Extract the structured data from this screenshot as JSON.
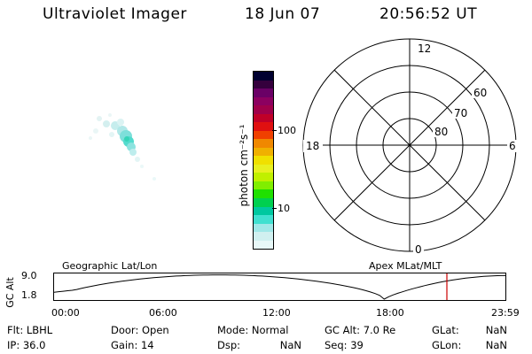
{
  "header": {
    "title": "Ultraviolet Imager",
    "date": "18 Jun 07",
    "time": "20:56:52 UT"
  },
  "colorbar": {
    "label": "photon cm⁻²s⁻¹",
    "ticks": [
      "100",
      "10"
    ],
    "colors": [
      "#000030",
      "#35003d",
      "#6a0066",
      "#8c0060",
      "#a0004a",
      "#c00028",
      "#e01010",
      "#f04000",
      "#f08800",
      "#f0b000",
      "#f0e000",
      "#e8f020",
      "#c0f000",
      "#80ee00",
      "#20e000",
      "#00d050",
      "#00c8a0",
      "#40e0d0",
      "#a0e8e8",
      "#d0f0f0",
      "#e8f8f8"
    ]
  },
  "polar": {
    "lat_labels": [
      "80",
      "70",
      "60"
    ],
    "mlt_labels": {
      "top": "12",
      "left": "18",
      "right": "6",
      "bottom": "0"
    }
  },
  "timeline": {
    "left_title": "Geographic Lat/Lon",
    "right_title": "Apex MLat/MLT",
    "ylabel": "GC Alt",
    "yticks": [
      "9.0",
      "1.8"
    ],
    "xticks": [
      "00:00",
      "06:00",
      "12:00",
      "18:00",
      "23:59"
    ],
    "marker_time": "20:56"
  },
  "info": {
    "row1": [
      {
        "label": "Flt:",
        "value": "LBHL"
      },
      {
        "label": "Door:",
        "value": "Open"
      },
      {
        "label": "Mode:",
        "value": "Normal"
      },
      {
        "label": "GC Alt:",
        "value": "7.0 Re"
      },
      {
        "label": "GLat:",
        "value": "NaN"
      }
    ],
    "row2": [
      {
        "label": "IP:",
        "value": "36.0"
      },
      {
        "label": "Gain:",
        "value": "14"
      },
      {
        "label": "Dsp:",
        "value": "NaN"
      },
      {
        "label": "Seq:",
        "value": "39"
      },
      {
        "label": "GLon:",
        "value": "NaN"
      }
    ]
  },
  "colors": {
    "marker": "#cc0000"
  }
}
